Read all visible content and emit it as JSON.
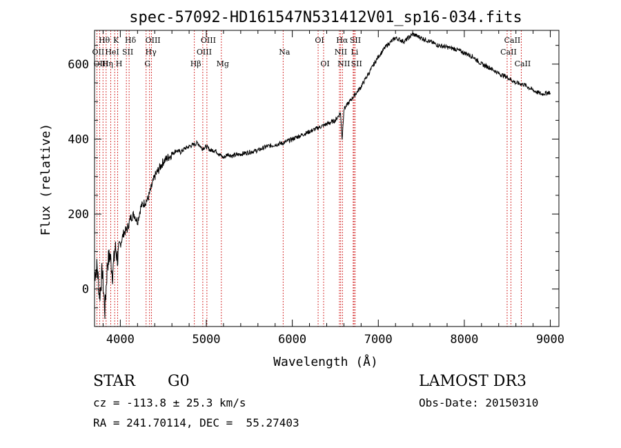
{
  "chart_data": {
    "type": "line",
    "title": "spec-57092-HD161547N531412V01_sp16-034.fits",
    "xlabel": "Wavelength (Å)",
    "ylabel": "Flux (relative)",
    "xlim": [
      3700,
      9100
    ],
    "ylim": [
      -100,
      690
    ],
    "xticks": [
      4000,
      5000,
      6000,
      7000,
      8000,
      9000
    ],
    "yticks": [
      0,
      200,
      400,
      600
    ],
    "grid": false,
    "series": [
      {
        "name": "flux",
        "x": [
          3700,
          3730,
          3760,
          3790,
          3820,
          3850,
          3880,
          3910,
          3940,
          3970,
          4000,
          4040,
          4080,
          4120,
          4160,
          4200,
          4240,
          4280,
          4320,
          4360,
          4400,
          4450,
          4500,
          4550,
          4600,
          4650,
          4700,
          4750,
          4800,
          4850,
          4900,
          4950,
          5000,
          5050,
          5100,
          5150,
          5200,
          5250,
          5300,
          5400,
          5500,
          5600,
          5700,
          5800,
          5900,
          6000,
          6100,
          6200,
          6300,
          6400,
          6500,
          6560,
          6580,
          6600,
          6700,
          6800,
          6900,
          7000,
          7100,
          7200,
          7300,
          7400,
          7500,
          7600,
          7700,
          7800,
          7900,
          8000,
          8100,
          8200,
          8300,
          8400,
          8500,
          8600,
          8700,
          8800,
          8900,
          8990,
          9000
        ],
        "y": [
          40,
          60,
          -20,
          50,
          -60,
          70,
          90,
          40,
          110,
          80,
          120,
          150,
          160,
          190,
          200,
          180,
          220,
          230,
          240,
          270,
          300,
          320,
          340,
          350,
          360,
          370,
          365,
          375,
          380,
          385,
          390,
          375,
          380,
          370,
          370,
          360,
          350,
          360,
          355,
          360,
          365,
          370,
          380,
          385,
          390,
          400,
          410,
          420,
          430,
          440,
          450,
          470,
          400,
          480,
          510,
          540,
          580,
          620,
          650,
          670,
          660,
          680,
          670,
          660,
          650,
          645,
          640,
          630,
          620,
          600,
          590,
          575,
          565,
          550,
          545,
          530,
          520,
          525,
          520
        ]
      }
    ],
    "annotations": {
      "row1": [
        {
          "label": "Hθ",
          "x": 3798,
          "line": true
        },
        {
          "label": "K",
          "x": 3934,
          "line": true
        },
        {
          "label": "Hδ",
          "x": 4102,
          "line": true
        },
        {
          "label": "OIII",
          "x": 4363,
          "line": true
        },
        {
          "label": "OIII",
          "x": 5007,
          "line": true
        },
        {
          "label": "OI",
          "x": 6300,
          "line": true
        },
        {
          "label": "Hα",
          "x": 6563,
          "line": true
        },
        {
          "label": "SII",
          "x": 6717,
          "line": true
        },
        {
          "label": "CaII",
          "x": 8542,
          "line": true
        }
      ],
      "row2": [
        {
          "label": "OII",
          "x": 3727,
          "line": true
        },
        {
          "label": "HeI",
          "x": 3889,
          "line": true
        },
        {
          "label": "SII",
          "x": 4070,
          "line": true
        },
        {
          "label": "Hγ",
          "x": 4340,
          "line": true
        },
        {
          "label": "OIII",
          "x": 4959,
          "line": true
        },
        {
          "label": "Na",
          "x": 5893,
          "line": true
        },
        {
          "label": "NII",
          "x": 6548,
          "line": true
        },
        {
          "label": "Li",
          "x": 6708,
          "line": true
        },
        {
          "label": "CaII",
          "x": 8498,
          "line": true
        }
      ],
      "row3": [
        {
          "label": "OIII",
          "x": 3760,
          "line": true
        },
        {
          "label": "Hη",
          "x": 3835,
          "line": true
        },
        {
          "label": "H",
          "x": 3969,
          "line": true
        },
        {
          "label": "G",
          "x": 4300,
          "line": true
        },
        {
          "label": "Hβ",
          "x": 4861,
          "line": true
        },
        {
          "label": "Mg",
          "x": 5175,
          "line": true
        },
        {
          "label": "OI",
          "x": 6364,
          "line": true
        },
        {
          "label": "NII",
          "x": 6583,
          "line": true
        },
        {
          "label": "SII",
          "x": 6731,
          "line": true
        },
        {
          "label": "CaII",
          "x": 8662,
          "line": true
        }
      ]
    }
  },
  "info": {
    "object_type": "STAR",
    "subclass": "G0",
    "survey": "LAMOST DR3",
    "cz": "cz = -113.8 ± 25.3 km/s",
    "obs_date": "Obs-Date: 20150310",
    "coords": "RA = 241.70114, DEC =  55.27403"
  },
  "colors": {
    "axis": "#000000",
    "line_marker": "#cc0000",
    "spectrum": "#000000"
  }
}
